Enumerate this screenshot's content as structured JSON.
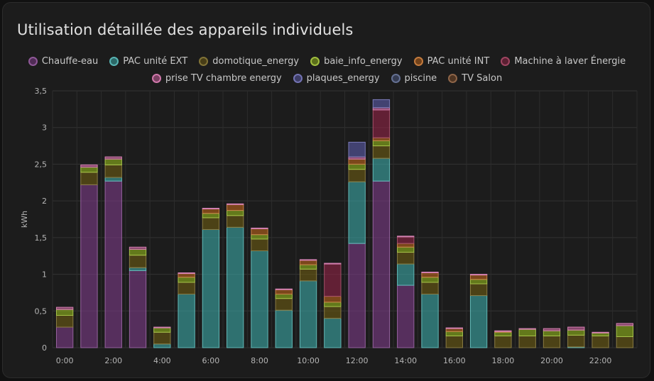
{
  "card": {
    "title": "Utilisation détaillée des appareils individuels"
  },
  "chart_data": {
    "type": "bar",
    "stacked": true,
    "ylabel": "kWh",
    "xlabel": "",
    "ylim": [
      0,
      3.5
    ],
    "y_ticks": [
      "0",
      "0,5",
      "1",
      "1,5",
      "2",
      "2,5",
      "3",
      "3,5"
    ],
    "categories": [
      "0:00",
      "1:00",
      "2:00",
      "3:00",
      "4:00",
      "5:00",
      "6:00",
      "7:00",
      "8:00",
      "9:00",
      "10:00",
      "11:00",
      "12:00",
      "13:00",
      "14:00",
      "15:00",
      "16:00",
      "17:00",
      "18:00",
      "19:00",
      "20:00",
      "21:00",
      "22:00",
      "23:00"
    ],
    "x_tick_labels": [
      "0:00",
      "",
      "2:00",
      "",
      "4:00",
      "",
      "6:00",
      "",
      "8:00",
      "",
      "10:00",
      "",
      "12:00",
      "",
      "14:00",
      "",
      "16:00",
      "",
      "18:00",
      "",
      "20:00",
      "",
      "22:00",
      ""
    ],
    "grid": true,
    "legend_position": "top-center",
    "series": [
      {
        "name": "Chauffe-eau",
        "color": "#7b3b86",
        "values": [
          0.28,
          2.22,
          2.27,
          1.05,
          0,
          0,
          0,
          0,
          0,
          0,
          0,
          0,
          1.42,
          2.27,
          0.85,
          0,
          0,
          0,
          0,
          0,
          0,
          0,
          0,
          0
        ]
      },
      {
        "name": "PAC unité EXT",
        "color": "#3ba7a5",
        "values": [
          0,
          0,
          0.05,
          0.04,
          0.05,
          0.73,
          1.61,
          1.64,
          1.32,
          0.51,
          0.91,
          0.4,
          0.84,
          0.31,
          0.29,
          0.73,
          0,
          0.71,
          0,
          0,
          0,
          0.01,
          0,
          0
        ]
      },
      {
        "name": "domotique_energy",
        "color": "#6b5a14",
        "values": [
          0.16,
          0.17,
          0.17,
          0.17,
          0.16,
          0.16,
          0.16,
          0.16,
          0.16,
          0.16,
          0.16,
          0.16,
          0.17,
          0.17,
          0.16,
          0.16,
          0.16,
          0.16,
          0.16,
          0.16,
          0.16,
          0.16,
          0.16,
          0.15
        ]
      },
      {
        "name": "baie_info_energy",
        "color": "#8fb31c",
        "values": [
          0.08,
          0.07,
          0.08,
          0.08,
          0.06,
          0.07,
          0.06,
          0.07,
          0.06,
          0.06,
          0.06,
          0.06,
          0.07,
          0.07,
          0.07,
          0.07,
          0.06,
          0.06,
          0.05,
          0.09,
          0.07,
          0.07,
          0.04,
          0.15
        ]
      },
      {
        "name": "PAC unité INT",
        "color": "#b8621b",
        "values": [
          0,
          0,
          0,
          0,
          0,
          0.05,
          0.06,
          0.08,
          0.08,
          0.06,
          0.06,
          0.08,
          0.07,
          0.04,
          0.05,
          0.06,
          0.04,
          0.06,
          0.01,
          0,
          0,
          0,
          0,
          0
        ]
      },
      {
        "name": "Machine à laver Énergie",
        "color": "#8e2445",
        "values": [
          0,
          0,
          0,
          0,
          0,
          0,
          0,
          0,
          0,
          0,
          0,
          0.44,
          0,
          0.38,
          0.09,
          0,
          0,
          0,
          0,
          0,
          0,
          0,
          0,
          0
        ]
      },
      {
        "name": "prise TV chambre energy",
        "color": "#c8609c",
        "values": [
          0.03,
          0.03,
          0.03,
          0.03,
          0.01,
          0.01,
          0.01,
          0.01,
          0.01,
          0.01,
          0.01,
          0.01,
          0.03,
          0.03,
          0.01,
          0.01,
          0.01,
          0.01,
          0.01,
          0.01,
          0.03,
          0.04,
          0.01,
          0.03
        ]
      },
      {
        "name": "plaques_energy",
        "color": "#5a5aa6",
        "values": [
          0,
          0,
          0,
          0,
          0,
          0,
          0,
          0,
          0,
          0,
          0,
          0,
          0.2,
          0.11,
          0,
          0,
          0,
          0,
          0,
          0,
          0,
          0,
          0,
          0
        ]
      },
      {
        "name": "piscine",
        "color": "#4a5880",
        "values": [
          0,
          0,
          0,
          0,
          0,
          0,
          0,
          0,
          0,
          0,
          0,
          0,
          0,
          0,
          0,
          0,
          0,
          0,
          0,
          0,
          0,
          0,
          0,
          0
        ]
      },
      {
        "name": "TV Salon",
        "color": "#7a4a28",
        "values": [
          0,
          0,
          0,
          0,
          0,
          0,
          0,
          0,
          0,
          0,
          0,
          0,
          0,
          0,
          0,
          0,
          0,
          0,
          0,
          0,
          0,
          0,
          0,
          0
        ]
      }
    ]
  }
}
